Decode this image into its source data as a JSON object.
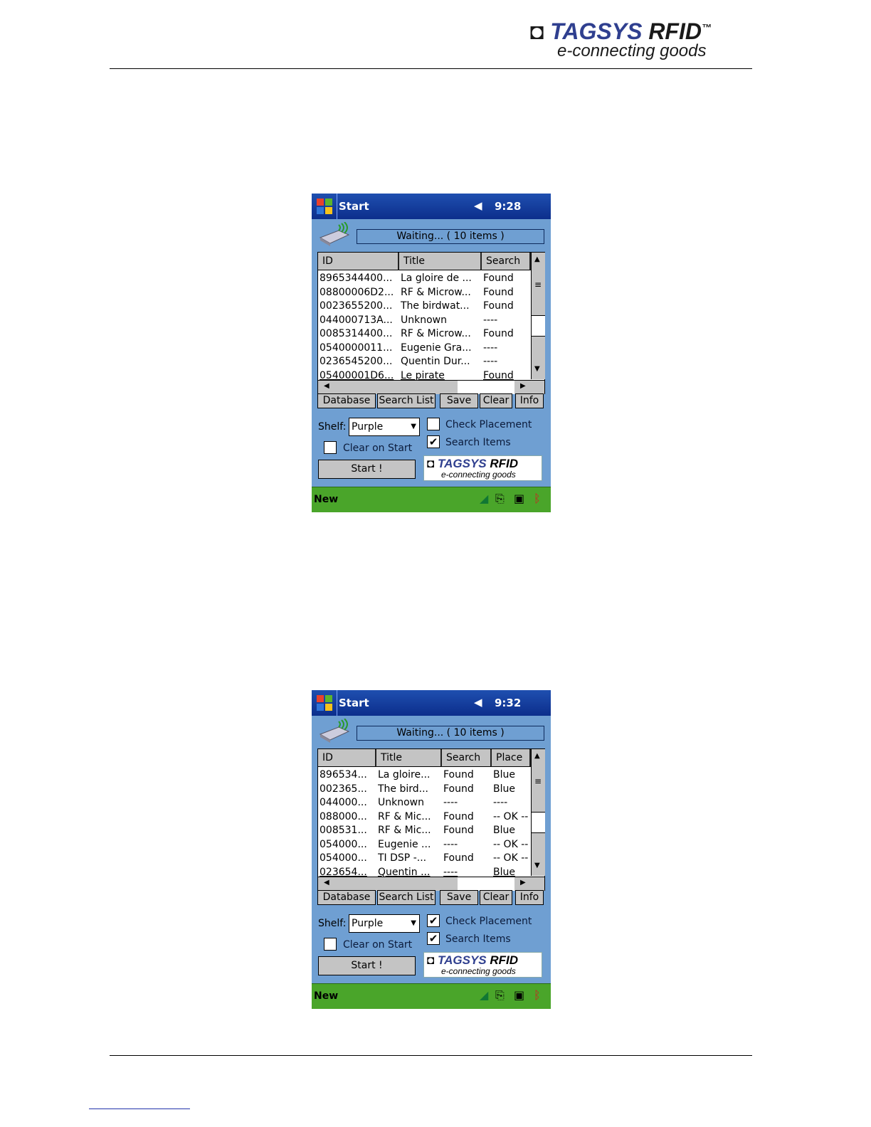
{
  "header_logo": {
    "brand_main": "TAGSYS",
    "brand_rfid": "RFID",
    "trademark": "™",
    "tagline": "e-connecting goods"
  },
  "colors": {
    "titlebar": "#0c2e8c",
    "window_bg": "#6f9fd2",
    "menubar": "#4aa52a",
    "button": "#c4c4c4"
  },
  "screenshots": [
    {
      "title": "Start",
      "time": "9:28",
      "status": "Waiting... ( 10 items )",
      "columns": [
        "ID",
        "Title",
        "Search"
      ],
      "rows": [
        [
          "8965344400...",
          "La gloire de ...",
          "Found"
        ],
        [
          "08800006D2...",
          "RF & Microw...",
          "Found"
        ],
        [
          "0023655200...",
          "The birdwat...",
          "Found"
        ],
        [
          "044000713A...",
          "Unknown",
          "----"
        ],
        [
          "0085314400...",
          "RF & Microw...",
          "Found"
        ],
        [
          "0540000011...",
          "Eugenie Gra...",
          "----"
        ],
        [
          "0236545200...",
          "Quentin Dur...",
          "----"
        ],
        [
          "05400001D6...",
          "Le pirate",
          "Found"
        ]
      ],
      "tabs": [
        "Database",
        "Search List",
        "Save",
        "Clear",
        "Info"
      ],
      "shelf_label": "Shelf:",
      "shelf_value": "Purple",
      "check_placement": {
        "label": "Check Placement",
        "checked": false
      },
      "search_items": {
        "label": "Search Items",
        "checked": true
      },
      "clear_on_start": {
        "label": "Clear on Start",
        "checked": false
      },
      "start_button": "Start !",
      "menu_left": "New"
    },
    {
      "title": "Start",
      "time": "9:32",
      "status": "Waiting... ( 10 items )",
      "columns": [
        "ID",
        "Title",
        "Search",
        "Place"
      ],
      "rows": [
        [
          "896534...",
          "La gloire...",
          "Found",
          "Blue"
        ],
        [
          "002365...",
          "The bird...",
          "Found",
          "Blue"
        ],
        [
          "044000...",
          "Unknown",
          "----",
          "----"
        ],
        [
          "088000...",
          "RF & Mic...",
          "Found",
          "-- OK --"
        ],
        [
          "008531...",
          "RF & Mic...",
          "Found",
          "Blue"
        ],
        [
          "054000...",
          "Eugenie ...",
          "----",
          "-- OK --"
        ],
        [
          "054000...",
          "TI DSP -...",
          "Found",
          "-- OK --"
        ],
        [
          "023654...",
          "Quentin ...",
          "----",
          "Blue"
        ]
      ],
      "tabs": [
        "Database",
        "Search List",
        "Save",
        "Clear",
        "Info"
      ],
      "shelf_label": "Shelf:",
      "shelf_value": "Purple",
      "check_placement": {
        "label": "Check Placement",
        "checked": true
      },
      "search_items": {
        "label": "Search Items",
        "checked": true
      },
      "clear_on_start": {
        "label": "Clear on Start",
        "checked": false
      },
      "start_button": "Start !",
      "menu_left": "New"
    }
  ]
}
